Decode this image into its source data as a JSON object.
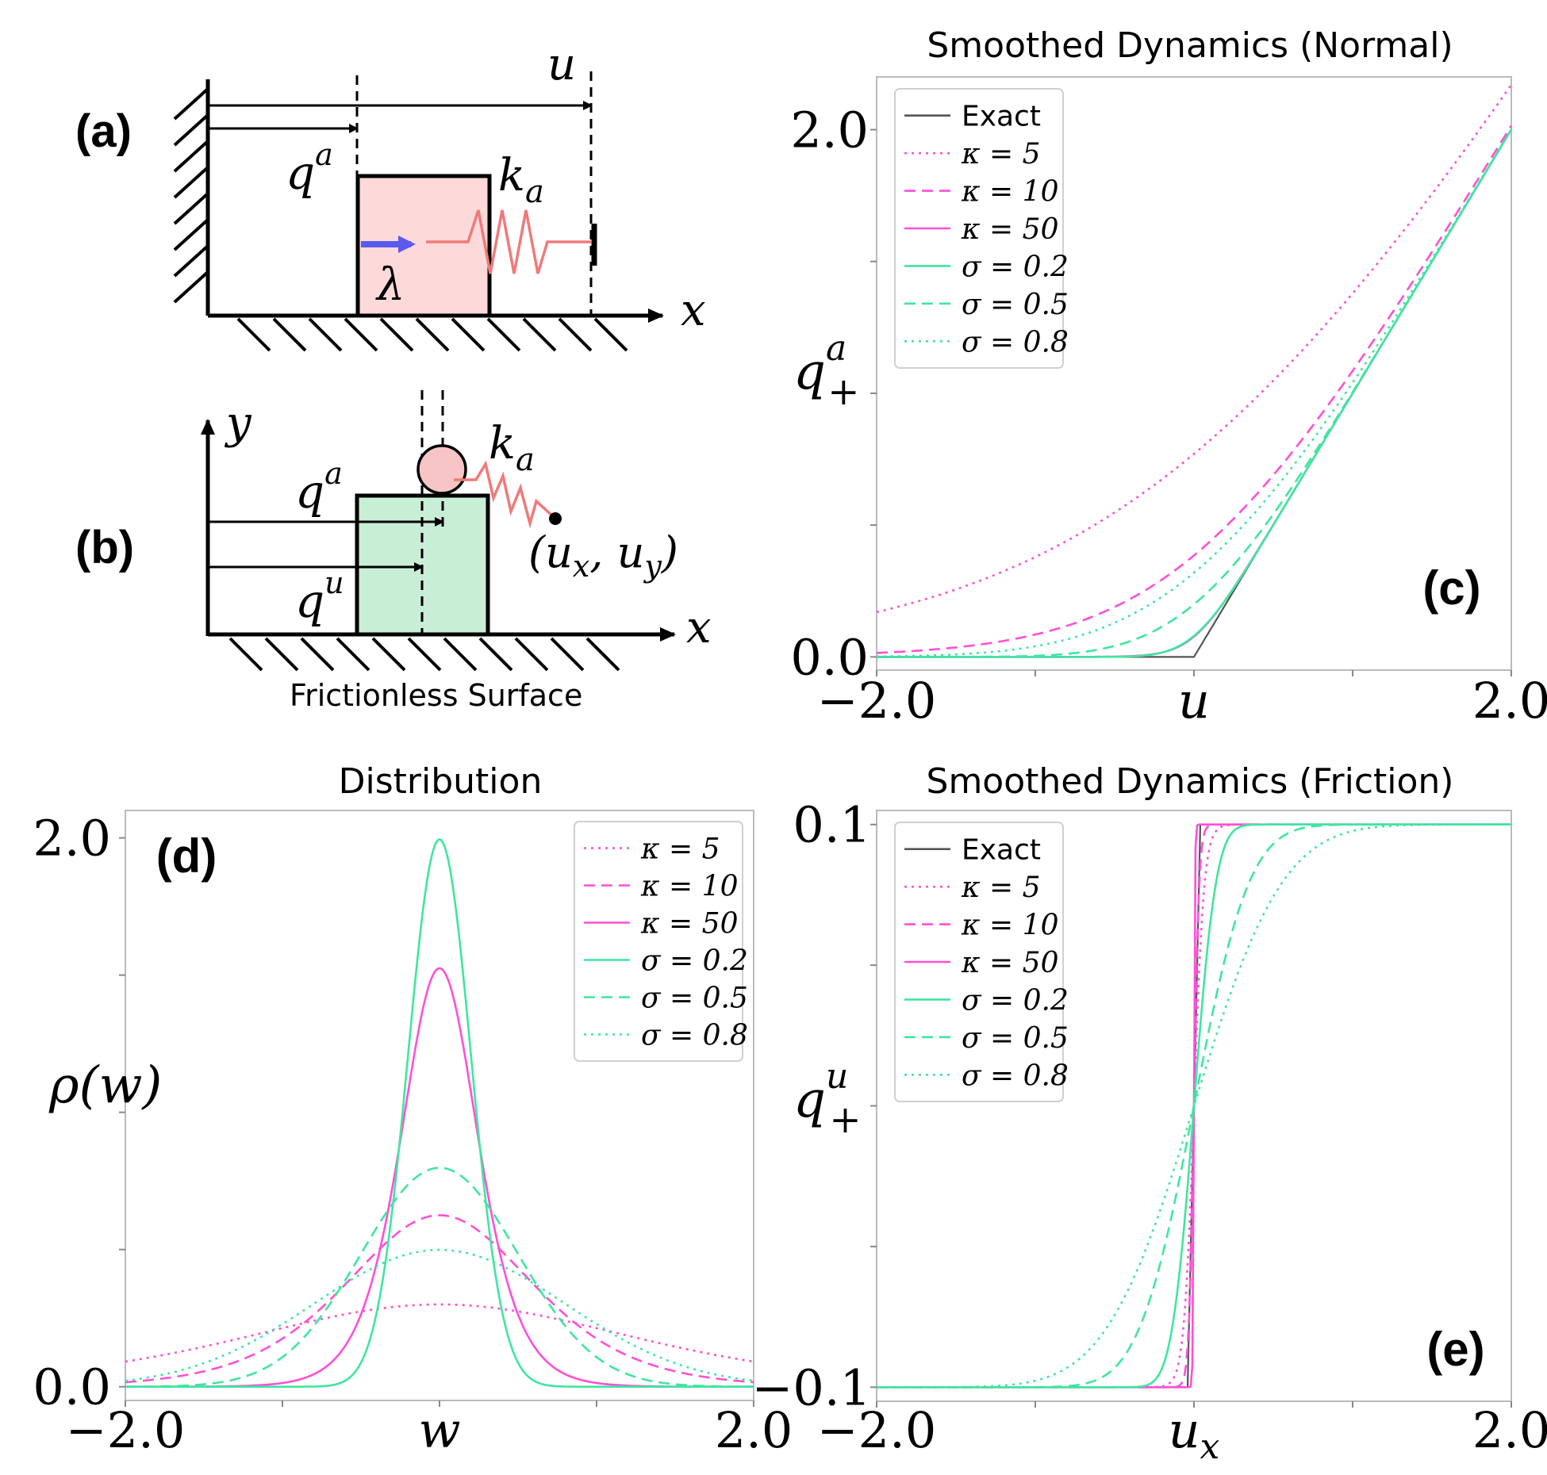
{
  "panel_a": {
    "label": "(a)",
    "symbols": {
      "q": "q",
      "q_sup": "a",
      "u": "u",
      "k": "k",
      "k_sub": "a",
      "lambda": "λ",
      "x": "x"
    },
    "colors": {
      "box_fill": "#fdd9d9",
      "spring": "#f07a7a",
      "force_arrow": "#5a5aee"
    }
  },
  "panel_b": {
    "label": "(b)",
    "surface_label": "Frictionless Surface",
    "symbols": {
      "y": "y",
      "x": "x",
      "qa": "q",
      "qa_sup": "a",
      "qu": "q",
      "qu_sup": "u",
      "k": "k",
      "k_sub": "a",
      "point_label": "(u",
      "point_x_sub": "x",
      "point_comma": ", u",
      "point_y_sub": "y",
      "point_close": ")"
    },
    "colors": {
      "box_fill": "#c9eed6",
      "ball_fill": "#f7c5c5",
      "spring": "#f07a7a"
    }
  },
  "colors": {
    "exact": "#555555",
    "kappa": "#ff4fd8",
    "sigma": "#3fe6a0"
  },
  "chart_data": [
    {
      "id": "c",
      "panel_label": "(c)",
      "type": "line",
      "title": "Smoothed Dynamics (Normal)",
      "xlabel": "u",
      "ylabel": "q",
      "ylabel_sup": "a",
      "ylabel_sub": "+",
      "xlim": [
        -2.0,
        2.0
      ],
      "ylim": [
        -0.05,
        2.2
      ],
      "xticks": [
        "−2.0",
        "2.0"
      ],
      "yticks": [
        "0.0",
        "2.0"
      ],
      "legend_position": "top-left",
      "series": [
        {
          "name": "Exact",
          "style": "solid",
          "color": "exact",
          "family": "exact"
        },
        {
          "name": "κ = 5",
          "style": "dotted",
          "color": "kappa",
          "family": "kappa",
          "param": 5
        },
        {
          "name": "κ = 10",
          "style": "dashed",
          "color": "kappa",
          "family": "kappa",
          "param": 10
        },
        {
          "name": "κ = 50",
          "style": "solid",
          "color": "kappa",
          "family": "kappa",
          "param": 50
        },
        {
          "name": "σ = 0.2",
          "style": "solid",
          "color": "sigma",
          "family": "sigma",
          "param": 0.2
        },
        {
          "name": "σ = 0.5",
          "style": "dashed",
          "color": "sigma",
          "family": "sigma",
          "param": 0.5
        },
        {
          "name": "σ = 0.8",
          "style": "dotted",
          "color": "sigma",
          "family": "sigma",
          "param": 0.8
        }
      ]
    },
    {
      "id": "d",
      "panel_label": "(d)",
      "type": "line",
      "title": "Distribution",
      "xlabel": "w",
      "ylabel": "ρ(w)",
      "xlim": [
        -2.0,
        2.0
      ],
      "ylim": [
        -0.05,
        2.1
      ],
      "xticks": [
        "−2.0",
        "2.0"
      ],
      "yticks": [
        "0.0",
        "2.0"
      ],
      "legend_position": "top-right",
      "series": [
        {
          "name": "κ = 5",
          "style": "dotted",
          "color": "kappa",
          "family": "kappa",
          "param": 5
        },
        {
          "name": "κ = 10",
          "style": "dashed",
          "color": "kappa",
          "family": "kappa",
          "param": 10
        },
        {
          "name": "κ = 50",
          "style": "solid",
          "color": "kappa",
          "family": "kappa",
          "param": 50
        },
        {
          "name": "σ = 0.2",
          "style": "solid",
          "color": "sigma",
          "family": "sigma",
          "param": 0.2
        },
        {
          "name": "σ = 0.5",
          "style": "dashed",
          "color": "sigma",
          "family": "sigma",
          "param": 0.5
        },
        {
          "name": "σ = 0.8",
          "style": "dotted",
          "color": "sigma",
          "family": "sigma",
          "param": 0.8
        }
      ]
    },
    {
      "id": "e",
      "panel_label": "(e)",
      "type": "line",
      "title": "Smoothed Dynamics (Friction)",
      "xlabel": "u",
      "xlabel_sub": "x",
      "ylabel": "q",
      "ylabel_sup": "u",
      "ylabel_sub": "+",
      "xlim": [
        -2.0,
        2.0
      ],
      "ylim": [
        -0.105,
        0.105
      ],
      "xticks": [
        "−2.0",
        "2.0"
      ],
      "yticks": [
        "−0.1",
        "0.1"
      ],
      "legend_position": "top-left",
      "series": [
        {
          "name": "Exact",
          "style": "solid",
          "color": "exact",
          "family": "exact"
        },
        {
          "name": "κ = 5",
          "style": "dotted",
          "color": "kappa",
          "family": "kappa",
          "param": 5
        },
        {
          "name": "κ = 10",
          "style": "dashed",
          "color": "kappa",
          "family": "kappa",
          "param": 10
        },
        {
          "name": "κ = 50",
          "style": "solid",
          "color": "kappa",
          "family": "kappa",
          "param": 50
        },
        {
          "name": "σ = 0.2",
          "style": "solid",
          "color": "sigma",
          "family": "sigma",
          "param": 0.2
        },
        {
          "name": "σ = 0.5",
          "style": "dashed",
          "color": "sigma",
          "family": "sigma",
          "param": 0.5
        },
        {
          "name": "σ = 0.8",
          "style": "dotted",
          "color": "sigma",
          "family": "sigma",
          "param": 0.8
        }
      ]
    }
  ]
}
